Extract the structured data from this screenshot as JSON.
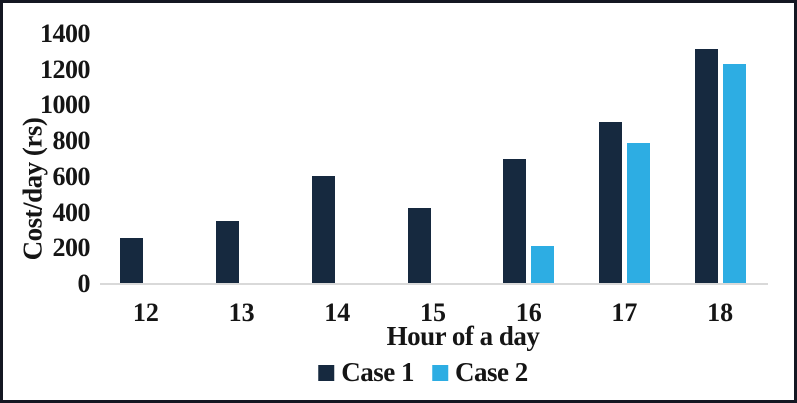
{
  "chart_data": {
    "type": "bar",
    "title": "",
    "xlabel": "Hour of a day",
    "ylabel": "Cost/day (rs)",
    "categories": [
      "12",
      "13",
      "14",
      "15",
      "16",
      "17",
      "18"
    ],
    "series": [
      {
        "name": "Case 1",
        "color": "#16293f",
        "values": [
          260,
          355,
          605,
          425,
          700,
          905,
          1315
        ]
      },
      {
        "name": "Case 2",
        "color": "#2dade3",
        "values": [
          0,
          0,
          0,
          0,
          215,
          790,
          1230
        ]
      }
    ],
    "ylim": [
      0,
      1400
    ],
    "yticks": [
      0,
      200,
      400,
      600,
      800,
      1000,
      1200,
      1400
    ],
    "grid": false,
    "legend_position": "bottom",
    "colors": {
      "frame": "#141722",
      "axis_line": "#d9d9d9",
      "text": "#151515"
    }
  }
}
